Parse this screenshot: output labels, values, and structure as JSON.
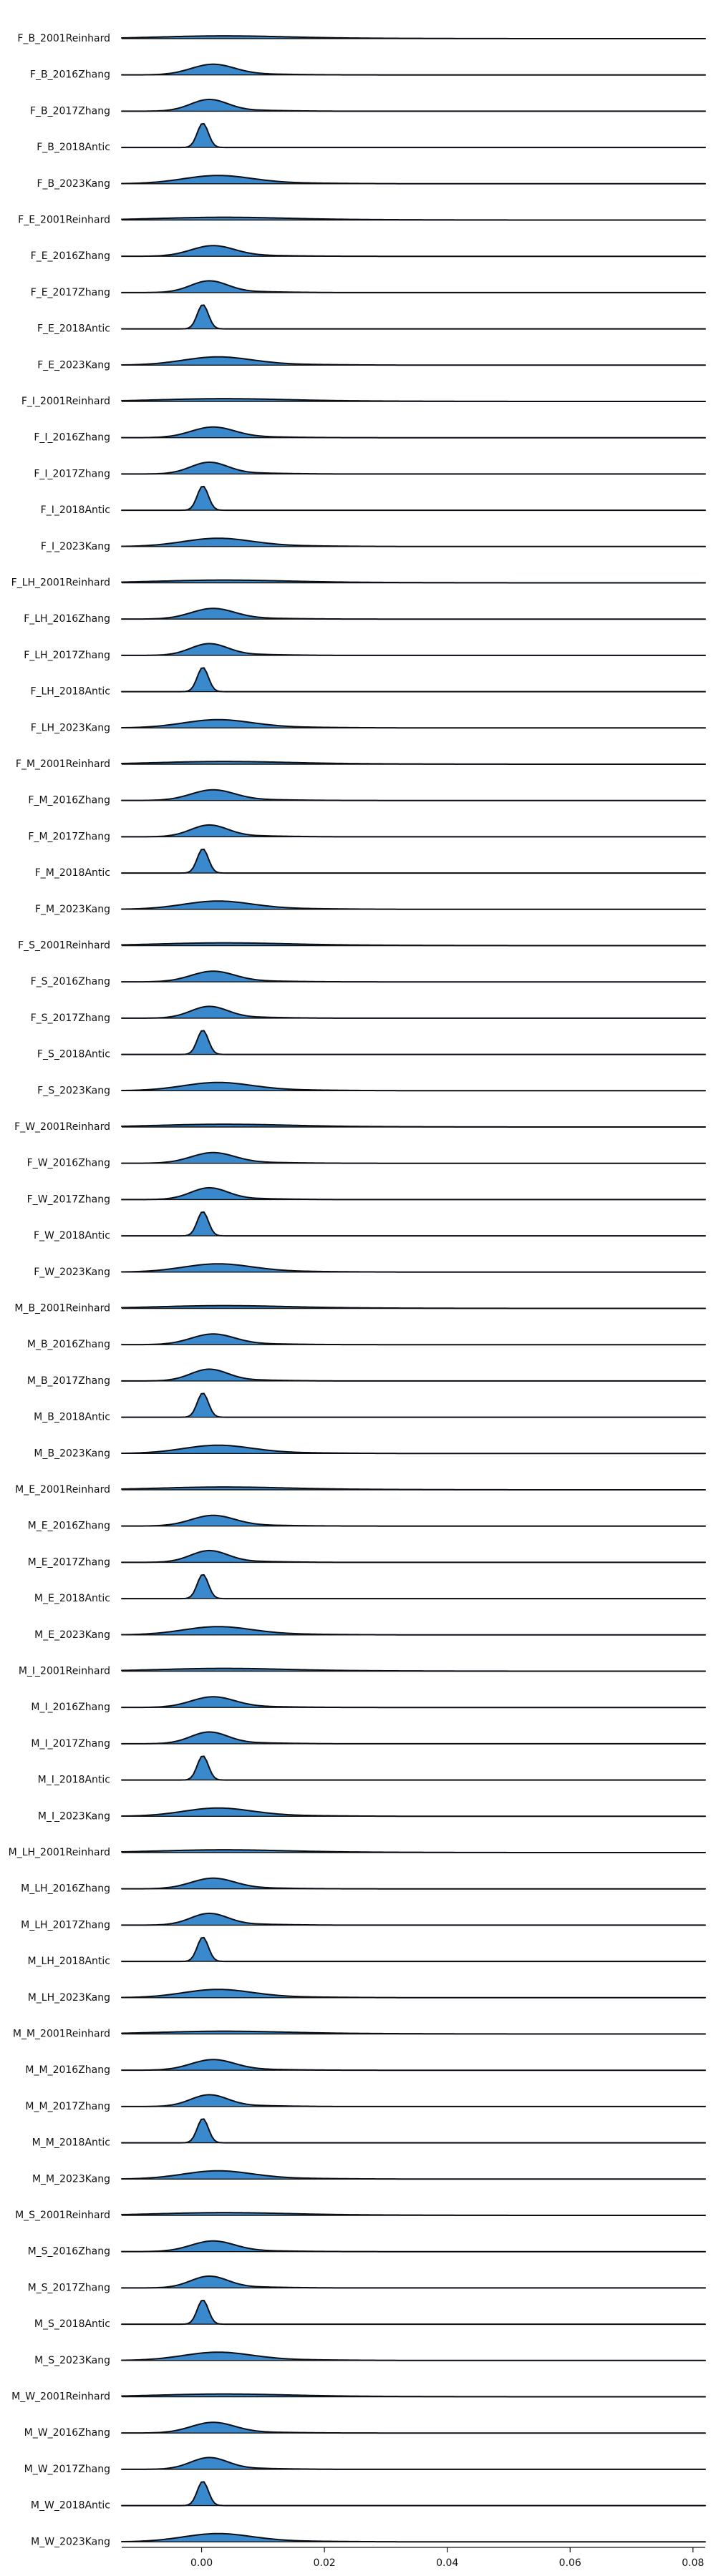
{
  "chart_data": {
    "type": "ridgeline",
    "x_ticks": [
      "0.00",
      "0.02",
      "0.04",
      "0.06",
      "0.08"
    ],
    "xlim": [
      -0.013,
      0.082
    ],
    "rows": [
      {
        "label": "F_B_2001Reinhard",
        "center": 0.003,
        "spread": 0.01,
        "peak": 0.12
      },
      {
        "label": "F_B_2016Zhang",
        "center": 0.0018,
        "spread": 0.0035,
        "peak": 0.45
      },
      {
        "label": "F_B_2017Zhang",
        "center": 0.0012,
        "spread": 0.003,
        "peak": 0.5
      },
      {
        "label": "F_B_2018Antic",
        "center": 0.0002,
        "spread": 0.0009,
        "peak": 1.0
      },
      {
        "label": "F_B_2023Kang",
        "center": 0.0025,
        "spread": 0.0055,
        "peak": 0.35
      },
      {
        "label": "F_E_2001Reinhard",
        "center": 0.003,
        "spread": 0.01,
        "peak": 0.12
      },
      {
        "label": "F_E_2016Zhang",
        "center": 0.0018,
        "spread": 0.0035,
        "peak": 0.45
      },
      {
        "label": "F_E_2017Zhang",
        "center": 0.0012,
        "spread": 0.003,
        "peak": 0.5
      },
      {
        "label": "F_E_2018Antic",
        "center": 0.0002,
        "spread": 0.0009,
        "peak": 1.0
      },
      {
        "label": "F_E_2023Kang",
        "center": 0.0025,
        "spread": 0.0055,
        "peak": 0.35
      },
      {
        "label": "F_I_2001Reinhard",
        "center": 0.003,
        "spread": 0.01,
        "peak": 0.12
      },
      {
        "label": "F_I_2016Zhang",
        "center": 0.0018,
        "spread": 0.0035,
        "peak": 0.45
      },
      {
        "label": "F_I_2017Zhang",
        "center": 0.0012,
        "spread": 0.003,
        "peak": 0.5
      },
      {
        "label": "F_I_2018Antic",
        "center": 0.0002,
        "spread": 0.0009,
        "peak": 1.0
      },
      {
        "label": "F_I_2023Kang",
        "center": 0.0025,
        "spread": 0.0055,
        "peak": 0.35
      },
      {
        "label": "F_LH_2001Reinhard",
        "center": 0.003,
        "spread": 0.01,
        "peak": 0.12
      },
      {
        "label": "F_LH_2016Zhang",
        "center": 0.0018,
        "spread": 0.0035,
        "peak": 0.45
      },
      {
        "label": "F_LH_2017Zhang",
        "center": 0.0012,
        "spread": 0.003,
        "peak": 0.5
      },
      {
        "label": "F_LH_2018Antic",
        "center": 0.0002,
        "spread": 0.0009,
        "peak": 1.0
      },
      {
        "label": "F_LH_2023Kang",
        "center": 0.0025,
        "spread": 0.0055,
        "peak": 0.35
      },
      {
        "label": "F_M_2001Reinhard",
        "center": 0.003,
        "spread": 0.01,
        "peak": 0.12
      },
      {
        "label": "F_M_2016Zhang",
        "center": 0.0018,
        "spread": 0.0035,
        "peak": 0.45
      },
      {
        "label": "F_M_2017Zhang",
        "center": 0.0012,
        "spread": 0.003,
        "peak": 0.5
      },
      {
        "label": "F_M_2018Antic",
        "center": 0.0002,
        "spread": 0.0009,
        "peak": 1.0
      },
      {
        "label": "F_M_2023Kang",
        "center": 0.0025,
        "spread": 0.0055,
        "peak": 0.35
      },
      {
        "label": "F_S_2001Reinhard",
        "center": 0.003,
        "spread": 0.01,
        "peak": 0.12
      },
      {
        "label": "F_S_2016Zhang",
        "center": 0.0018,
        "spread": 0.0035,
        "peak": 0.45
      },
      {
        "label": "F_S_2017Zhang",
        "center": 0.0012,
        "spread": 0.003,
        "peak": 0.5
      },
      {
        "label": "F_S_2018Antic",
        "center": 0.0002,
        "spread": 0.0009,
        "peak": 1.0
      },
      {
        "label": "F_S_2023Kang",
        "center": 0.0025,
        "spread": 0.0055,
        "peak": 0.35
      },
      {
        "label": "F_W_2001Reinhard",
        "center": 0.003,
        "spread": 0.01,
        "peak": 0.12
      },
      {
        "label": "F_W_2016Zhang",
        "center": 0.0018,
        "spread": 0.0035,
        "peak": 0.45
      },
      {
        "label": "F_W_2017Zhang",
        "center": 0.0012,
        "spread": 0.003,
        "peak": 0.5
      },
      {
        "label": "F_W_2018Antic",
        "center": 0.0002,
        "spread": 0.0009,
        "peak": 1.0
      },
      {
        "label": "F_W_2023Kang",
        "center": 0.0025,
        "spread": 0.0055,
        "peak": 0.35
      },
      {
        "label": "M_B_2001Reinhard",
        "center": 0.003,
        "spread": 0.01,
        "peak": 0.12
      },
      {
        "label": "M_B_2016Zhang",
        "center": 0.0018,
        "spread": 0.0035,
        "peak": 0.45
      },
      {
        "label": "M_B_2017Zhang",
        "center": 0.0012,
        "spread": 0.003,
        "peak": 0.5
      },
      {
        "label": "M_B_2018Antic",
        "center": 0.0002,
        "spread": 0.0009,
        "peak": 1.0
      },
      {
        "label": "M_B_2023Kang",
        "center": 0.0025,
        "spread": 0.0055,
        "peak": 0.35
      },
      {
        "label": "M_E_2001Reinhard",
        "center": 0.003,
        "spread": 0.01,
        "peak": 0.12
      },
      {
        "label": "M_E_2016Zhang",
        "center": 0.0018,
        "spread": 0.0035,
        "peak": 0.45
      },
      {
        "label": "M_E_2017Zhang",
        "center": 0.0012,
        "spread": 0.003,
        "peak": 0.5
      },
      {
        "label": "M_E_2018Antic",
        "center": 0.0002,
        "spread": 0.0009,
        "peak": 1.0
      },
      {
        "label": "M_E_2023Kang",
        "center": 0.0025,
        "spread": 0.0055,
        "peak": 0.35
      },
      {
        "label": "M_I_2001Reinhard",
        "center": 0.003,
        "spread": 0.01,
        "peak": 0.12
      },
      {
        "label": "M_I_2016Zhang",
        "center": 0.0018,
        "spread": 0.0035,
        "peak": 0.45
      },
      {
        "label": "M_I_2017Zhang",
        "center": 0.0012,
        "spread": 0.003,
        "peak": 0.5
      },
      {
        "label": "M_I_2018Antic",
        "center": 0.0002,
        "spread": 0.0009,
        "peak": 1.0
      },
      {
        "label": "M_I_2023Kang",
        "center": 0.0025,
        "spread": 0.0055,
        "peak": 0.35
      },
      {
        "label": "M_LH_2001Reinhard",
        "center": 0.003,
        "spread": 0.01,
        "peak": 0.12
      },
      {
        "label": "M_LH_2016Zhang",
        "center": 0.0018,
        "spread": 0.0035,
        "peak": 0.45
      },
      {
        "label": "M_LH_2017Zhang",
        "center": 0.0012,
        "spread": 0.003,
        "peak": 0.5
      },
      {
        "label": "M_LH_2018Antic",
        "center": 0.0002,
        "spread": 0.0009,
        "peak": 1.0
      },
      {
        "label": "M_LH_2023Kang",
        "center": 0.0025,
        "spread": 0.0055,
        "peak": 0.35
      },
      {
        "label": "M_M_2001Reinhard",
        "center": 0.003,
        "spread": 0.01,
        "peak": 0.12
      },
      {
        "label": "M_M_2016Zhang",
        "center": 0.0018,
        "spread": 0.0035,
        "peak": 0.45
      },
      {
        "label": "M_M_2017Zhang",
        "center": 0.0012,
        "spread": 0.003,
        "peak": 0.5
      },
      {
        "label": "M_M_2018Antic",
        "center": 0.0002,
        "spread": 0.0009,
        "peak": 1.0
      },
      {
        "label": "M_M_2023Kang",
        "center": 0.0025,
        "spread": 0.0055,
        "peak": 0.35
      },
      {
        "label": "M_S_2001Reinhard",
        "center": 0.003,
        "spread": 0.01,
        "peak": 0.12
      },
      {
        "label": "M_S_2016Zhang",
        "center": 0.0018,
        "spread": 0.0035,
        "peak": 0.45
      },
      {
        "label": "M_S_2017Zhang",
        "center": 0.0012,
        "spread": 0.003,
        "peak": 0.5
      },
      {
        "label": "M_S_2018Antic",
        "center": 0.0002,
        "spread": 0.0009,
        "peak": 1.0
      },
      {
        "label": "M_S_2023Kang",
        "center": 0.0025,
        "spread": 0.0055,
        "peak": 0.35
      },
      {
        "label": "M_W_2001Reinhard",
        "center": 0.003,
        "spread": 0.01,
        "peak": 0.12
      },
      {
        "label": "M_W_2016Zhang",
        "center": 0.0018,
        "spread": 0.0035,
        "peak": 0.45
      },
      {
        "label": "M_W_2017Zhang",
        "center": 0.0012,
        "spread": 0.003,
        "peak": 0.5
      },
      {
        "label": "M_W_2018Antic",
        "center": 0.0002,
        "spread": 0.0009,
        "peak": 1.0
      },
      {
        "label": "M_W_2023Kang",
        "center": 0.0025,
        "spread": 0.0055,
        "peak": 0.35
      }
    ],
    "colors": {
      "fill": "#2f83c9",
      "line": "#0a0f16",
      "axis": "#111111",
      "background": "#ffffff"
    }
  }
}
